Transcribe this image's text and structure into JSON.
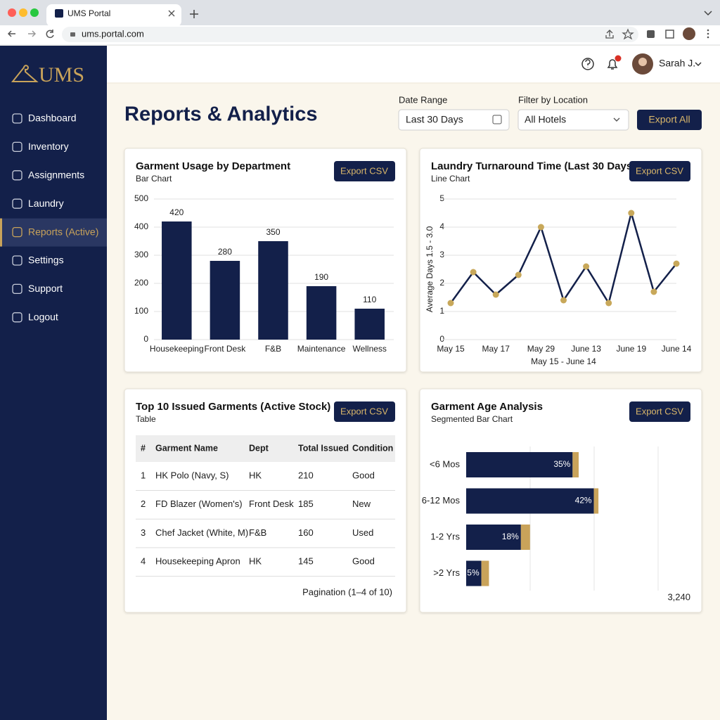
{
  "browser": {
    "tab_title": "UMS Portal",
    "url": "ums.portal.com"
  },
  "sidebar": {
    "logo": "UMS",
    "nav": [
      "Dashboard",
      "Inventory",
      "Assignments",
      "Laundry",
      "Reports (Active)",
      "Settings",
      "Support",
      "Logout"
    ],
    "active": 4
  },
  "topbar": {
    "user": "Sarah J."
  },
  "header": {
    "title": "Reports & Analytics",
    "date_range_label": "Date Range",
    "date_range_value": "Last 30 Days",
    "location_label": "Filter by Location",
    "location_value": "All Hotels",
    "export_all": "Export All"
  },
  "chart_data": [
    {
      "type": "bar",
      "title": "Garment Usage by Department",
      "subtitle": "Bar Chart",
      "button": "Export CSV",
      "categories": [
        "Housekeeping",
        "Front Desk",
        "F&B",
        "Maintenance",
        "Wellness"
      ],
      "values": [
        420,
        280,
        350,
        190,
        110
      ],
      "color": "#13204a",
      "ylim": [
        0,
        500
      ],
      "yticks": [
        0,
        100,
        200,
        300,
        400,
        500
      ],
      "grid": true
    },
    {
      "type": "line",
      "title": "Laundry Turnaround Time (Last 30 Days)",
      "subtitle": "Line Chart",
      "button": "Export CSV",
      "x_label": "May 15 - June 14",
      "y_label": "Average Days  1.5 - 3.0",
      "categories": [
        "May 15",
        null,
        "May 17",
        null,
        "May 29",
        null,
        "June 13",
        null,
        "June 19",
        null,
        "June 14"
      ],
      "values": [
        1.3,
        2.4,
        1.6,
        2.3,
        4.0,
        1.4,
        2.6,
        1.3,
        4.5,
        1.7,
        2.7
      ],
      "color": "#13204a",
      "marker_color": "#c8a85a",
      "ylim": [
        0,
        5
      ],
      "yticks": [
        0,
        1,
        2,
        3,
        4,
        5
      ],
      "grid": true
    },
    {
      "type": "barh",
      "title": "Garment Age Analysis",
      "subtitle": "Segmented Bar Chart",
      "button": "Export CSV",
      "categories": [
        "<6 Mos",
        "6-12 Mos",
        "1-2 Yrs",
        ">2 Yrs"
      ],
      "series": [
        {
          "color": "#13204a",
          "values": [
            35,
            42,
            18,
            5
          ],
          "value_labels": [
            "35%",
            "42%",
            "18%",
            "5%"
          ]
        },
        {
          "color": "#c9a35a",
          "values": [
            2,
            1.5,
            3,
            2.5
          ]
        }
      ],
      "xlim": [
        0,
        74
      ],
      "annotation": "3,240"
    }
  ],
  "table": {
    "title": "Top 10 Issued Garments (Active Stock)",
    "subtitle": "Table",
    "button": "Export CSV",
    "columns": [
      "#",
      "Garment Name",
      "Dept",
      "Total Issued",
      "Condition"
    ],
    "rows": [
      [
        1,
        "HK Polo (Navy, S)",
        "HK",
        210,
        "Good"
      ],
      [
        2,
        "FD Blazer (Women's)",
        "Front Desk",
        185,
        "New"
      ],
      [
        3,
        "Chef Jacket (White, M)",
        "F&B",
        160,
        "Used"
      ],
      [
        4,
        "Housekeeping Apron",
        "HK",
        145,
        "Good"
      ]
    ],
    "footer": "Pagination (1–4 of 10)"
  }
}
